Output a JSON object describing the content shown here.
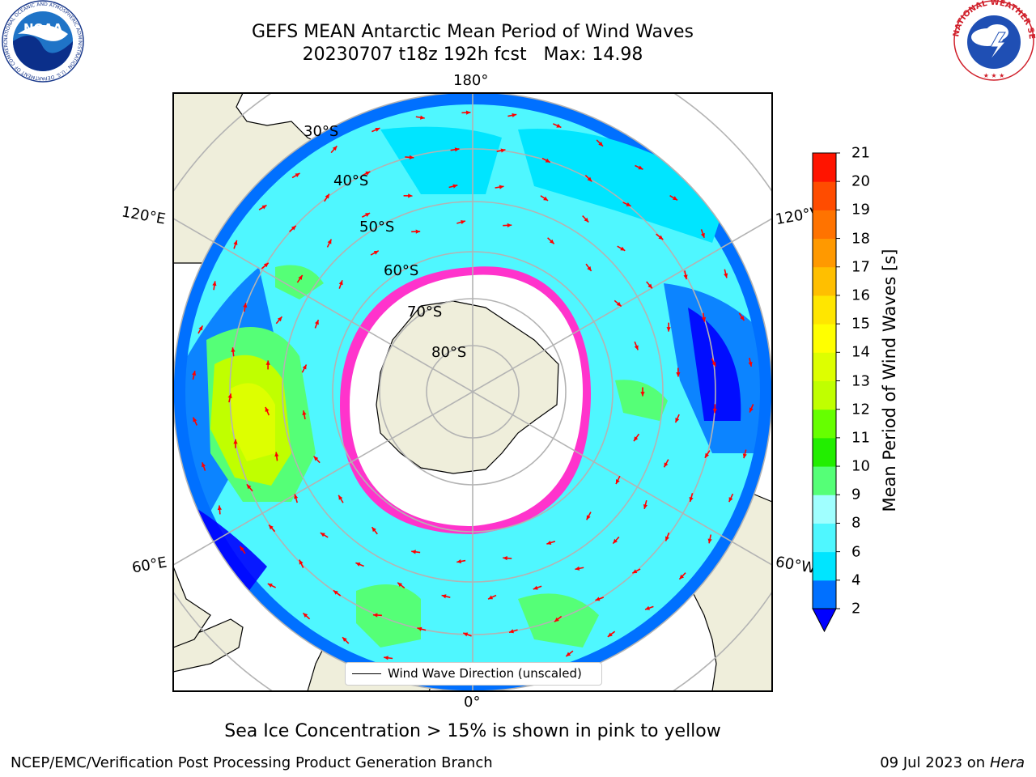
{
  "title": {
    "line1": "GEFS MEAN Antarctic Mean Period of Wind Waves",
    "line2": "20230707 t18z 192h fcst   Max: 14.98"
  },
  "map": {
    "projection": "south-polar stereographic",
    "lon_labels": [
      "180°",
      "120°E",
      "120°W",
      "60°E",
      "60°W",
      "0°"
    ],
    "lat_labels": [
      "30°S",
      "40°S",
      "50°S",
      "60°S",
      "70°S",
      "80°S"
    ],
    "legend": "Wind Wave Direction (unscaled)",
    "colors": {
      "land": "#efeedb",
      "ice_edge": "#ff33cc",
      "vector": "#ff0000",
      "grid": "#b3b3b3"
    }
  },
  "colorbar": {
    "title": "Mean Period of Wind Waves [s]",
    "ticks": [
      "2",
      "4",
      "6",
      "8",
      "9",
      "10",
      "11",
      "12",
      "13",
      "14",
      "15",
      "16",
      "17",
      "18",
      "19",
      "20",
      "21"
    ],
    "colors": [
      "#0070ff",
      "#00e5ff",
      "#4ff7ff",
      "#a0ffff",
      "#55ff77",
      "#22ee00",
      "#66ff00",
      "#c0ff00",
      "#ddff00",
      "#ffff00",
      "#ffe600",
      "#ffbf00",
      "#ff9900",
      "#ff7300",
      "#ff4c00",
      "#ff1400"
    ],
    "under_color": "#0000ff"
  },
  "note": "Sea Ice Concentration > 15% is shown in pink to yellow",
  "footer": {
    "left": "NCEP/EMC/Verification Post Processing Product Generation Branch",
    "right_date": "09 Jul 2023 on",
    "right_machine": "Hera"
  },
  "logos": {
    "noaa": {
      "text": "NOAA",
      "ring": "NATIONAL OCEANIC AND ATMOSPHERIC ADMINISTRATION · U.S. DEPARTMENT OF COMMERCE"
    },
    "nws": {
      "ring": "NATIONAL WEATHER SERVICE"
    }
  }
}
